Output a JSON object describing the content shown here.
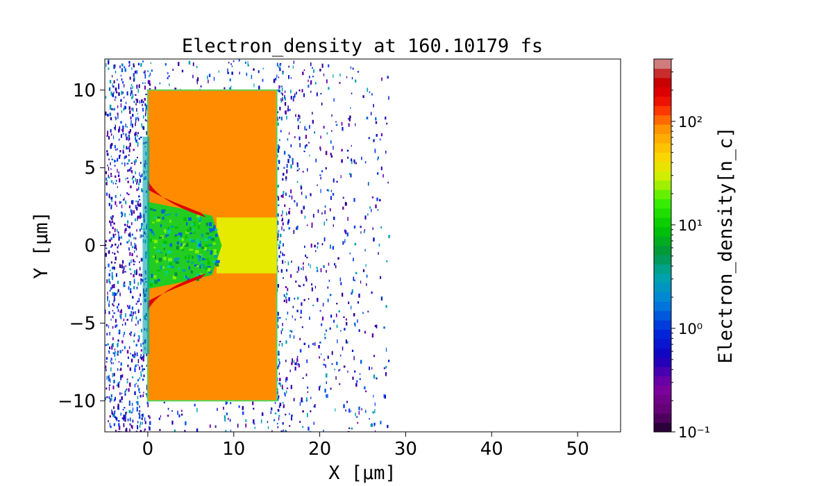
{
  "chart_data": {
    "type": "heatmap",
    "title": "Electron_density at 160.10179 fs",
    "xlabel": "X [μm]",
    "ylabel": "Y [μm]",
    "xlim": [
      -5,
      55
    ],
    "ylim": [
      -12,
      12
    ],
    "xticks": [
      0,
      10,
      20,
      30,
      40,
      50
    ],
    "xtick_labels": [
      "0",
      "10",
      "20",
      "30",
      "40",
      "50"
    ],
    "yticks": [
      10,
      5,
      0,
      -5,
      -10
    ],
    "ytick_labels": [
      "10",
      "5",
      "0",
      "−5",
      "−10"
    ],
    "grid": false,
    "colorbar": {
      "label": "Electron_density[n_c]",
      "scale": "log",
      "range": [
        0.1,
        400
      ],
      "ticks": [
        0.1,
        1,
        10,
        100
      ],
      "tick_labels": [
        "10⁻¹",
        "10⁰",
        "10¹",
        "10²"
      ],
      "colormap": "nipy_spectral"
    },
    "regions": [
      {
        "name": "target slab",
        "x": [
          0,
          15
        ],
        "y": [
          -10,
          10
        ],
        "density_nc": 100,
        "color": "#ff8c00"
      },
      {
        "name": "hole channel core",
        "x": [
          8,
          15
        ],
        "y": [
          -1.8,
          1.8
        ],
        "density_nc": 25,
        "color": "#e6ea00"
      },
      {
        "name": "channel plasma",
        "x": [
          0,
          8.5
        ],
        "y": [
          -2.5,
          2.5
        ],
        "density_nc": 8,
        "color": "#22cc22"
      },
      {
        "name": "compressed walls",
        "x": [
          0,
          7
        ],
        "y": [
          -4,
          4
        ],
        "density_nc": 300,
        "color": "#e00000"
      },
      {
        "name": "expelled electrons",
        "x": [
          -5,
          28
        ],
        "y": [
          -12,
          12
        ],
        "density_nc": 0.5,
        "color": "#0018c8"
      }
    ]
  }
}
